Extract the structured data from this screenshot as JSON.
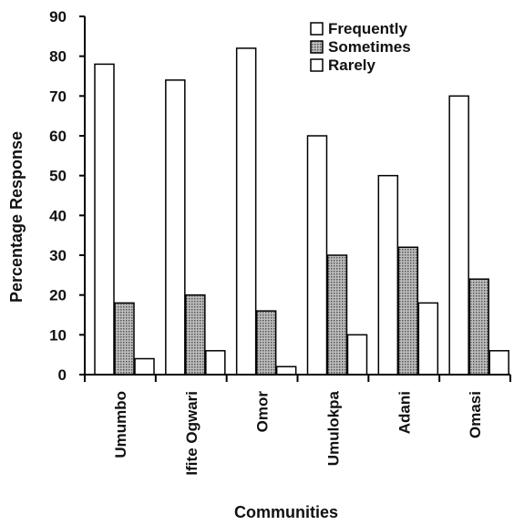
{
  "chart_data": {
    "type": "bar",
    "title": "",
    "xlabel": "Communities",
    "ylabel": "Percentage Response",
    "ylim": [
      0,
      90
    ],
    "yticks": [
      0,
      10,
      20,
      30,
      40,
      50,
      60,
      70,
      80,
      90
    ],
    "categories": [
      "Umumbo",
      "Ifite Ogwari",
      "Omor",
      "Umulokpa",
      "Adani",
      "Omasi"
    ],
    "series": [
      {
        "name": "Frequently",
        "values": [
          78,
          74,
          82,
          60,
          50,
          70
        ],
        "fill": "#ffffff"
      },
      {
        "name": "Sometimes",
        "values": [
          18,
          20,
          16,
          30,
          32,
          24
        ],
        "fill": "#9a9a9a"
      },
      {
        "name": "Rarely",
        "values": [
          4,
          6,
          2,
          10,
          18,
          6
        ],
        "fill": "#ffffff"
      }
    ],
    "legend_position": "top-right",
    "grid": false
  }
}
